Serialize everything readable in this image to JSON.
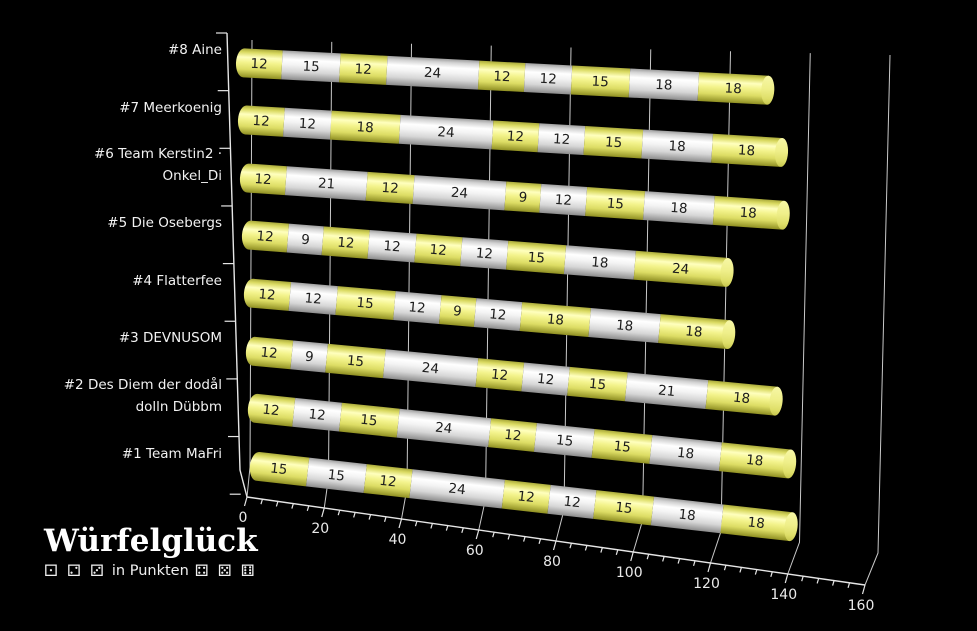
{
  "logo": {
    "title": "Würfelglück",
    "subtitle": "in Punkten",
    "dice_left": "⚀ ⚁ ⚂",
    "dice_right": "⚃ ⚄ ⚅"
  },
  "chart_data": {
    "type": "bar",
    "subtype": "stacked-horizontal-3d-cylinder",
    "title": "",
    "xlabel": "",
    "ylabel": "",
    "unit_label": "in Punkten",
    "xlim": [
      0,
      160
    ],
    "x_ticks": [
      0,
      20,
      40,
      60,
      80,
      100,
      120,
      140,
      160
    ],
    "x_minor_step": 4,
    "grid": true,
    "background": "#000000",
    "grid_color": "#c9c9c9",
    "axis_color": "#e6e6e6",
    "segment_color_odd": "#efef80",
    "segment_color_even": "#f5f5f5",
    "segment_text_color": "#1d1d1d",
    "rows_top_to_bottom": [
      {
        "rank": 8,
        "label": "#8 Aine",
        "segments": [
          12,
          15,
          12,
          24,
          12,
          12,
          15,
          18,
          18
        ],
        "total": 138
      },
      {
        "rank": 7,
        "label": "#7 Meerkoenig",
        "segments": [
          12,
          12,
          18,
          24,
          12,
          12,
          15,
          18,
          18
        ],
        "total": 141
      },
      {
        "rank": 6,
        "label": "#6 Team Kerstin2 · Onkel_Di",
        "segments": [
          12,
          21,
          12,
          24,
          9,
          12,
          15,
          18,
          18
        ],
        "total": 141
      },
      {
        "rank": 5,
        "label": "#5 Die Osebergs",
        "segments": [
          12,
          9,
          12,
          12,
          12,
          12,
          15,
          18,
          24
        ],
        "total": 126
      },
      {
        "rank": 4,
        "label": "#4 Flatterfee",
        "segments": [
          12,
          12,
          15,
          12,
          9,
          12,
          18,
          18,
          18
        ],
        "total": 126
      },
      {
        "rank": 3,
        "label": "#3 DEVNUSOM",
        "segments": [
          12,
          9,
          15,
          24,
          12,
          12,
          15,
          21,
          18
        ],
        "total": 138
      },
      {
        "rank": 2,
        "label": "#2 Des Diem der dodål dolln Dübbm",
        "segments": [
          12,
          12,
          15,
          24,
          12,
          15,
          15,
          18,
          18
        ],
        "total": 141
      },
      {
        "rank": 1,
        "label": "#1 Team MaFri",
        "segments": [
          15,
          15,
          12,
          24,
          12,
          12,
          15,
          18,
          18
        ],
        "total": 141
      }
    ]
  }
}
